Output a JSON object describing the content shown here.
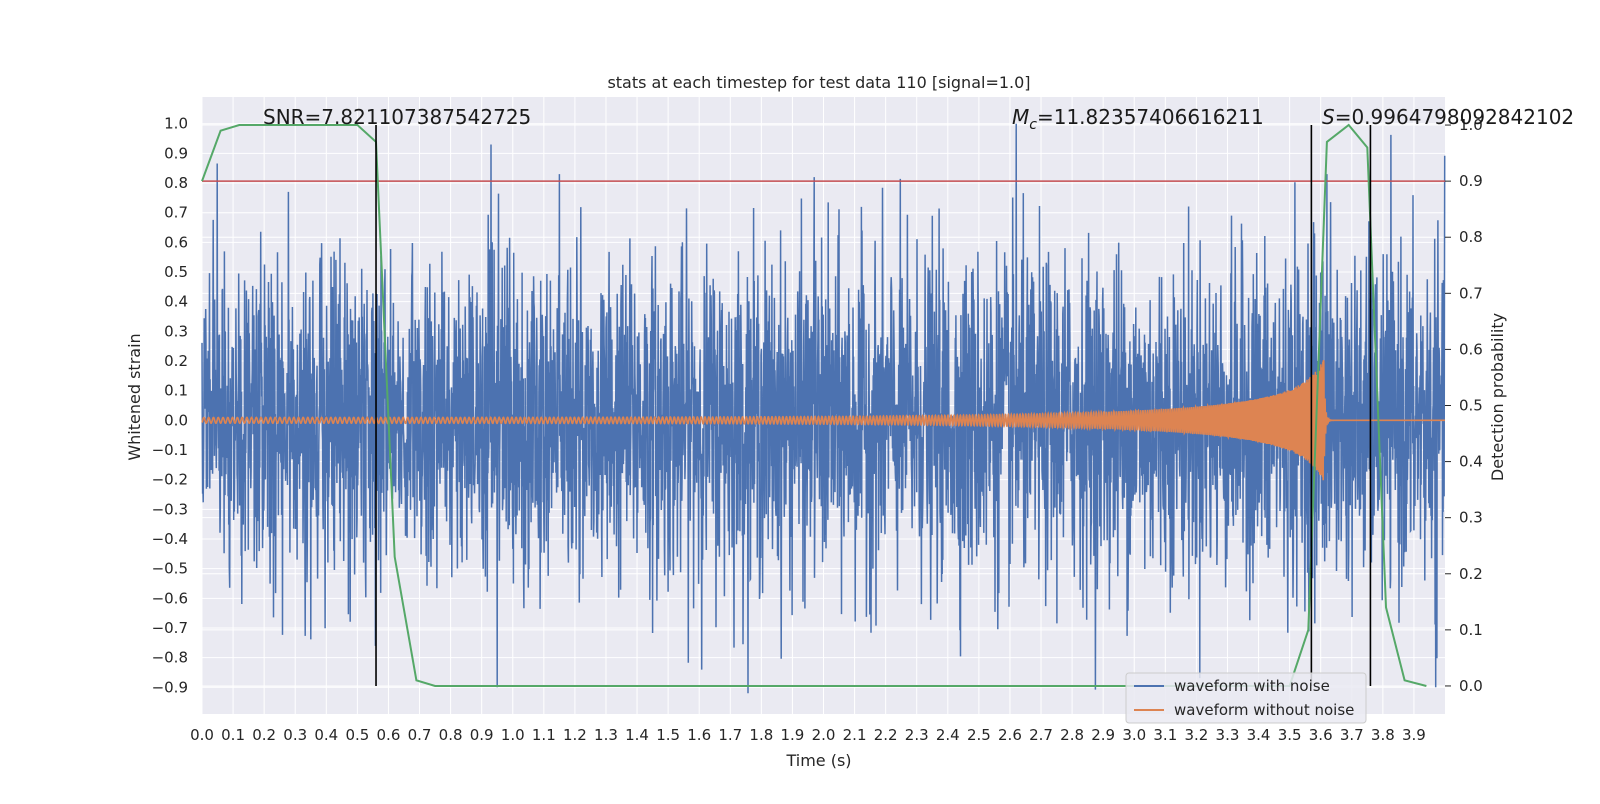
{
  "chart_data": {
    "type": "line",
    "title": "stats at each timestep for test data 110 [signal=1.0]",
    "xlabel": "Time (s)",
    "ylabel": "Whitened strain",
    "y2label": "Detection probability",
    "xlim": [
      0.0,
      4.0
    ],
    "ylim": [
      -0.99,
      1.09
    ],
    "y2lim": [
      -0.05,
      1.05
    ],
    "grid": true,
    "x_ticks": [
      "0.0",
      "0.1",
      "0.2",
      "0.3",
      "0.4",
      "0.5",
      "0.6",
      "0.7",
      "0.8",
      "0.9",
      "1.0",
      "1.1",
      "1.2",
      "1.3",
      "1.4",
      "1.5",
      "1.6",
      "1.7",
      "1.8",
      "1.9",
      "2.0",
      "2.1",
      "2.2",
      "2.3",
      "2.4",
      "2.5",
      "2.6",
      "2.7",
      "2.8",
      "2.9",
      "3.0",
      "3.1",
      "3.2",
      "3.3",
      "3.4",
      "3.5",
      "3.6",
      "3.7",
      "3.8",
      "3.9"
    ],
    "y_ticks": [
      "1.0",
      "0.9",
      "0.8",
      "0.7",
      "0.6",
      "0.5",
      "0.4",
      "0.3",
      "0.2",
      "0.1",
      "0.0",
      "−0.1",
      "−0.2",
      "−0.3",
      "−0.4",
      "−0.5",
      "−0.6",
      "−0.7",
      "−0.8",
      "−0.9"
    ],
    "y2_ticks": [
      "1.0",
      "0.9",
      "0.8",
      "0.7",
      "0.6",
      "0.5",
      "0.4",
      "0.3",
      "0.2",
      "0.1",
      "0.0"
    ],
    "annotations": {
      "snr": "SNR=7.821107387542725",
      "mc": "=11.82357406616211",
      "mc_symbol": "M",
      "mc_sub": "c",
      "s": "=0.9964798092842102",
      "s_symbol": "S"
    },
    "legend": {
      "placement": "lower-right",
      "entries": [
        "waveform with noise",
        "waveform without noise"
      ]
    },
    "threshold_y2": 0.9,
    "vertical_lines_x": [
      0.56,
      3.57,
      3.76
    ],
    "series": [
      {
        "name": "waveform with noise",
        "color": "#4c72b0",
        "kind": "noise",
        "std": 0.27,
        "spikes": [
          [
            0.93,
            0.93
          ],
          [
            0.95,
            -0.9
          ],
          [
            1.15,
            0.83
          ],
          [
            1.97,
            0.82
          ],
          [
            2.62,
            1.0
          ],
          [
            3.97,
            -0.9
          ],
          [
            3.62,
            0.83
          ]
        ]
      },
      {
        "name": "waveform without noise",
        "color": "#dd8452",
        "kind": "chirp",
        "merger_time": 3.61,
        "peak_amplitude": 0.2
      },
      {
        "name": "Detection probability",
        "color": "#55a868",
        "axis": "right",
        "x": [
          0.0,
          0.06,
          0.12,
          0.19,
          0.25,
          0.31,
          0.37,
          0.44,
          0.5,
          0.56,
          0.62,
          0.69,
          0.75,
          0.81,
          3.5,
          3.56,
          3.62,
          3.69,
          3.75,
          3.81,
          3.87,
          3.94
        ],
        "y": [
          0.9,
          0.99,
          1.0,
          1.0,
          1.0,
          1.0,
          1.0,
          1.0,
          1.0,
          0.97,
          0.23,
          0.01,
          0.0,
          0.0,
          0.0,
          0.1,
          0.97,
          1.0,
          0.96,
          0.14,
          0.01,
          0.0
        ]
      }
    ],
    "colors": {
      "plot_bg": "#eaeaf2",
      "grid": "#ffffff",
      "threshold": "#c44e52",
      "vline": "#000000"
    }
  }
}
